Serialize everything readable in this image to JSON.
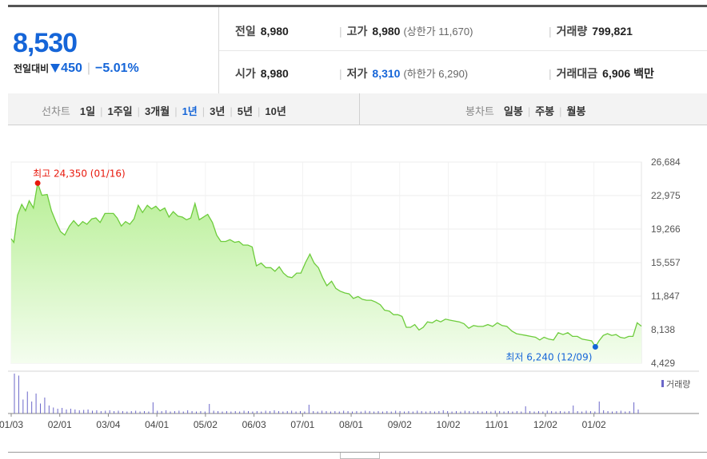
{
  "quote": {
    "price": "8,530",
    "change_label": "전일대비",
    "change_value": "450",
    "change_percent": "−5.01%",
    "prev_close": {
      "label": "전일",
      "value": "8,980"
    },
    "high": {
      "label": "고가",
      "value": "8,980",
      "limit_label": "(상한가 11,670)"
    },
    "volume": {
      "label": "거래량",
      "value": "799,821"
    },
    "open": {
      "label": "시가",
      "value": "8,980"
    },
    "low": {
      "label": "저가",
      "value": "8,310",
      "limit_label": "(하한가 6,290)"
    },
    "trade_value": {
      "label": "거래대금",
      "value": "6,906",
      "unit": "백만"
    }
  },
  "line_chart_tabs": {
    "group_label": "선차트",
    "items": [
      "1일",
      "1주일",
      "3개월",
      "1년",
      "3년",
      "5년",
      "10년"
    ],
    "selected": "1년"
  },
  "candle_chart_tabs": {
    "group_label": "봉차트",
    "items": [
      "일봉",
      "주봉",
      "월봉"
    ]
  },
  "colors": {
    "accent": "#1565d8",
    "down": "#1565d8",
    "area_line": "#6dcc3c",
    "area_fill": "#b8ef96",
    "max_marker": "#e8180c"
  },
  "chart_data": {
    "type": "area",
    "x_ticks": [
      "01/03",
      "02/01",
      "03/04",
      "04/01",
      "05/02",
      "06/03",
      "07/01",
      "08/01",
      "09/02",
      "10/02",
      "11/01",
      "12/02",
      "01/02"
    ],
    "y_ticks": [
      "26,684",
      "22,975",
      "19,266",
      "15,557",
      "11,847",
      "8,138",
      "4,429"
    ],
    "ylim": [
      4429,
      26684
    ],
    "max_annotation": "최고 24,350 (01/16)",
    "min_annotation": "최저 6,240 (12/09)",
    "volume_label": "거래량",
    "grid": true,
    "points": [
      [
        0,
        18200
      ],
      [
        0.005,
        17800
      ],
      [
        0.012,
        20800
      ],
      [
        0.02,
        22000
      ],
      [
        0.027,
        21300
      ],
      [
        0.034,
        22400
      ],
      [
        0.042,
        21600
      ],
      [
        0.05,
        24350
      ],
      [
        0.058,
        23000
      ],
      [
        0.068,
        23100
      ],
      [
        0.076,
        21300
      ],
      [
        0.085,
        20000
      ],
      [
        0.093,
        19000
      ],
      [
        0.101,
        18600
      ],
      [
        0.11,
        19600
      ],
      [
        0.118,
        20200
      ],
      [
        0.127,
        19600
      ],
      [
        0.135,
        20100
      ],
      [
        0.143,
        19800
      ],
      [
        0.152,
        20400
      ],
      [
        0.16,
        20500
      ],
      [
        0.168,
        20000
      ],
      [
        0.177,
        21000
      ],
      [
        0.185,
        21000
      ],
      [
        0.193,
        21000
      ],
      [
        0.2,
        20500
      ],
      [
        0.208,
        19600
      ],
      [
        0.216,
        20100
      ],
      [
        0.224,
        19800
      ],
      [
        0.232,
        20400
      ],
      [
        0.24,
        21900
      ],
      [
        0.248,
        21100
      ],
      [
        0.257,
        21900
      ],
      [
        0.265,
        21500
      ],
      [
        0.273,
        21800
      ],
      [
        0.281,
        21300
      ],
      [
        0.29,
        21600
      ],
      [
        0.298,
        20600
      ],
      [
        0.306,
        21200
      ],
      [
        0.315,
        20700
      ],
      [
        0.323,
        20600
      ],
      [
        0.331,
        20300
      ],
      [
        0.339,
        20500
      ],
      [
        0.347,
        22100
      ],
      [
        0.355,
        20300
      ],
      [
        0.363,
        20600
      ],
      [
        0.371,
        20900
      ],
      [
        0.38,
        20000
      ],
      [
        0.388,
        18600
      ],
      [
        0.396,
        17900
      ],
      [
        0.405,
        17900
      ],
      [
        0.413,
        18100
      ],
      [
        0.422,
        17800
      ],
      [
        0.43,
        17900
      ],
      [
        0.438,
        17500
      ],
      [
        0.447,
        17500
      ],
      [
        0.455,
        17300
      ],
      [
        0.463,
        15200
      ],
      [
        0.472,
        15500
      ],
      [
        0.481,
        15000
      ],
      [
        0.49,
        15000
      ],
      [
        0.498,
        14600
      ],
      [
        0.506,
        15100
      ],
      [
        0.514,
        14400
      ],
      [
        0.522,
        14000
      ],
      [
        0.53,
        13900
      ],
      [
        0.539,
        14400
      ],
      [
        0.547,
        14400
      ],
      [
        0.556,
        15600
      ],
      [
        0.564,
        16500
      ],
      [
        0.572,
        15500
      ],
      [
        0.58,
        15000
      ],
      [
        0.588,
        13900
      ],
      [
        0.596,
        13000
      ],
      [
        0.605,
        13500
      ],
      [
        0.613,
        12700
      ],
      [
        0.621,
        12400
      ],
      [
        0.63,
        12200
      ],
      [
        0.638,
        12100
      ],
      [
        0.646,
        11600
      ],
      [
        0.655,
        11800
      ],
      [
        0.663,
        11500
      ],
      [
        0.671,
        11400
      ],
      [
        0.68,
        11400
      ],
      [
        0.688,
        11200
      ],
      [
        0.697,
        10900
      ],
      [
        0.705,
        10300
      ],
      [
        0.714,
        10200
      ],
      [
        0.722,
        9800
      ],
      [
        0.73,
        9800
      ],
      [
        0.738,
        9600
      ],
      [
        0.746,
        8400
      ],
      [
        0.754,
        8400
      ],
      [
        0.762,
        8700
      ],
      [
        0.77,
        8100
      ],
      [
        0.778,
        8400
      ],
      [
        0.786,
        9000
      ],
      [
        0.795,
        8900
      ],
      [
        0.803,
        9200
      ],
      [
        0.811,
        9000
      ],
      [
        0.82,
        9300
      ],
      [
        0.828,
        9200
      ],
      [
        0.837,
        9100
      ],
      [
        0.846,
        9000
      ],
      [
        0.855,
        8800
      ],
      [
        0.864,
        8300
      ],
      [
        0.873,
        8600
      ],
      [
        0.882,
        8500
      ],
      [
        0.891,
        8500
      ],
      [
        0.9,
        8700
      ],
      [
        0.909,
        8500
      ],
      [
        0.918,
        8900
      ],
      [
        0.927,
        8600
      ],
      [
        0.936,
        8500
      ],
      [
        0.945,
        8000
      ],
      [
        0.954,
        7700
      ],
      [
        0.963,
        7600
      ],
      [
        0.972,
        7500
      ],
      [
        0.981,
        7400
      ],
      [
        0.99,
        7300
      ],
      [
        0.998,
        7000
      ],
      [
        1.006,
        7300
      ],
      [
        1.015,
        7100
      ],
      [
        1.024,
        7000
      ],
      [
        1.033,
        7800
      ],
      [
        1.042,
        7600
      ],
      [
        1.051,
        7800
      ],
      [
        1.06,
        7400
      ],
      [
        1.069,
        7400
      ],
      [
        1.078,
        7100
      ],
      [
        1.087,
        7000
      ],
      [
        1.096,
        6900
      ],
      [
        1.103,
        6240
      ],
      [
        1.11,
        6900
      ],
      [
        1.118,
        7500
      ],
      [
        1.126,
        7700
      ],
      [
        1.134,
        7500
      ],
      [
        1.142,
        7600
      ],
      [
        1.15,
        7300
      ],
      [
        1.158,
        7200
      ],
      [
        1.166,
        7400
      ],
      [
        1.174,
        7400
      ],
      [
        1.182,
        8900
      ],
      [
        1.19,
        8530
      ]
    ],
    "volume": [
      1.0,
      0.95,
      0.35,
      0.55,
      0.3,
      0.5,
      0.25,
      0.4,
      0.2,
      0.15,
      0.12,
      0.14,
      0.1,
      0.12,
      0.1,
      0.08,
      0.09,
      0.1,
      0.07,
      0.08,
      0.06,
      0.07,
      0.08,
      0.06,
      0.07,
      0.06,
      0.05,
      0.06,
      0.07,
      0.05,
      0.06,
      0.05,
      0.28,
      0.07,
      0.06,
      0.08,
      0.05,
      0.06,
      0.07,
      0.05,
      0.08,
      0.06,
      0.05,
      0.06,
      0.05,
      0.24,
      0.07,
      0.06,
      0.05,
      0.06,
      0.05,
      0.06,
      0.05,
      0.07,
      0.06,
      0.05,
      0.06,
      0.05,
      0.07,
      0.06,
      0.08,
      0.06,
      0.05,
      0.06,
      0.07,
      0.05,
      0.06,
      0.05,
      0.22,
      0.06,
      0.05,
      0.07,
      0.06,
      0.05,
      0.06,
      0.05,
      0.07,
      0.06,
      0.05,
      0.06,
      0.05,
      0.07,
      0.06,
      0.05,
      0.06,
      0.05,
      0.06,
      0.05,
      0.07,
      0.06,
      0.05,
      0.06,
      0.05,
      0.07,
      0.06,
      0.05,
      0.06,
      0.05,
      0.06,
      0.08,
      0.06,
      0.05,
      0.06,
      0.05,
      0.07,
      0.06,
      0.05,
      0.06,
      0.05,
      0.06,
      0.05,
      0.07,
      0.06,
      0.05,
      0.06,
      0.05,
      0.06,
      0.05,
      0.18,
      0.06,
      0.05,
      0.06,
      0.05,
      0.07,
      0.06,
      0.05,
      0.06,
      0.05,
      0.06,
      0.2,
      0.06,
      0.05,
      0.07,
      0.06,
      0.05,
      0.3,
      0.08,
      0.06,
      0.05,
      0.06,
      0.07,
      0.05,
      0.06,
      0.28,
      0.1
    ]
  }
}
